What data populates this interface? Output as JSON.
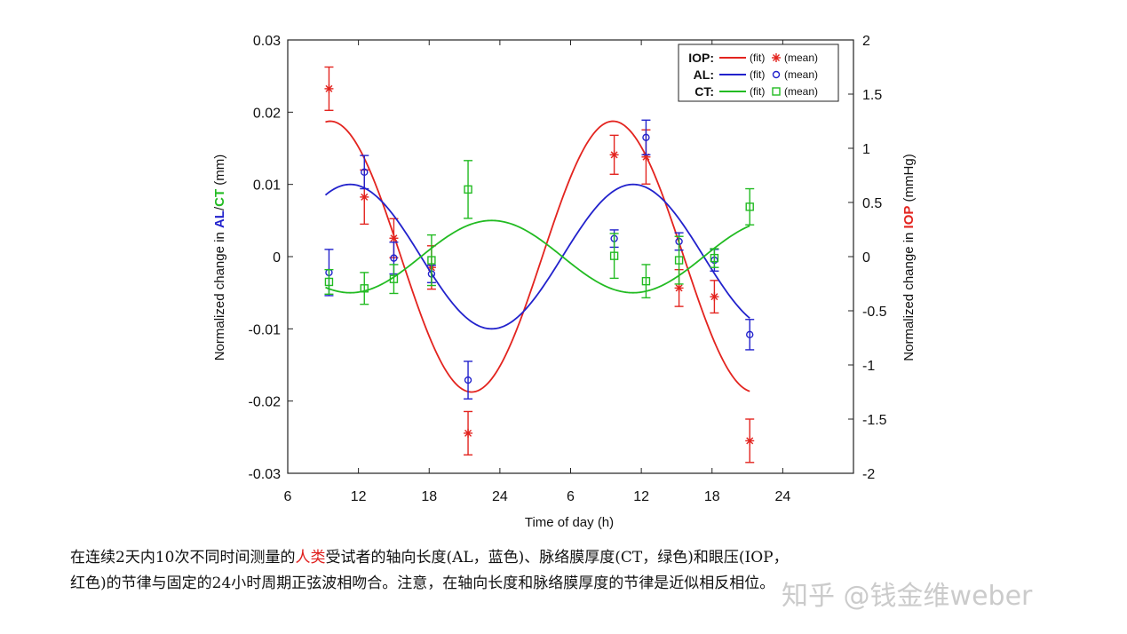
{
  "chart_data": {
    "type": "line",
    "x_ticks": [
      "6",
      "12",
      "18",
      "24",
      "6",
      "12",
      "18",
      "24"
    ],
    "xlabel": "Time of day (h)",
    "y_left": {
      "label_prefix": "Normalized change in ",
      "label_al": "AL",
      "label_sep": "/",
      "label_ct": "CT",
      "label_suffix": " (mm)",
      "ylim": [
        -0.03,
        0.03
      ],
      "ticks": [
        "-0.03",
        "-0.02",
        "-0.01",
        "0",
        "0.01",
        "0.02",
        "0.03"
      ]
    },
    "y_right": {
      "label_prefix": "Normalized change in ",
      "label_iop": "IOP",
      "label_suffix": " (mmHg)",
      "ylim": [
        -2,
        2
      ],
      "ticks": [
        "-2",
        "-1.5",
        "-1",
        "-0.5",
        "0",
        "0.5",
        "1",
        "1.5",
        "2"
      ]
    },
    "xlim": [
      6,
      54
    ],
    "series": [
      {
        "name": "IOP",
        "color": "#e3241f",
        "axis": "right",
        "marker": "asterisk",
        "fit": {
          "amplitude": 1.25,
          "peak_hour": 9.6,
          "phase_hours": 24,
          "x_start": 9.2,
          "x_end": 45.2
        },
        "mean": [
          {
            "x": 9.5,
            "y": 1.55,
            "err": 0.2
          },
          {
            "x": 12.5,
            "y": 0.55,
            "err": 0.25
          },
          {
            "x": 15,
            "y": 0.17,
            "err": 0.18
          },
          {
            "x": 18.2,
            "y": -0.1,
            "err": 0.2
          },
          {
            "x": 21.3,
            "y": -1.63,
            "err": 0.2
          },
          {
            "x": 33.7,
            "y": 0.94,
            "err": 0.18
          },
          {
            "x": 36.4,
            "y": 0.92,
            "err": 0.25
          },
          {
            "x": 39.2,
            "y": -0.29,
            "err": 0.17
          },
          {
            "x": 42.2,
            "y": -0.37,
            "err": 0.15
          },
          {
            "x": 45.2,
            "y": -1.7,
            "err": 0.2
          }
        ]
      },
      {
        "name": "AL",
        "color": "#2222cc",
        "axis": "left",
        "marker": "circle",
        "fit": {
          "amplitude": 0.01,
          "peak_hour": 11.3,
          "phase_hours": 24,
          "x_start": 9.2,
          "x_end": 45.2
        },
        "mean": [
          {
            "x": 9.5,
            "y": -0.0022,
            "err": 0.0032
          },
          {
            "x": 12.5,
            "y": 0.0117,
            "err": 0.0023
          },
          {
            "x": 15,
            "y": -0.0002,
            "err": 0.0022
          },
          {
            "x": 18.2,
            "y": -0.0024,
            "err": 0.0012
          },
          {
            "x": 21.3,
            "y": -0.0171,
            "err": 0.0026
          },
          {
            "x": 33.7,
            "y": 0.0025,
            "err": 0.0012
          },
          {
            "x": 36.4,
            "y": 0.0165,
            "err": 0.0024
          },
          {
            "x": 39.2,
            "y": 0.0021,
            "err": 0.0012
          },
          {
            "x": 42.2,
            "y": -0.0005,
            "err": 0.0015
          },
          {
            "x": 45.2,
            "y": -0.0108,
            "err": 0.0021
          }
        ]
      },
      {
        "name": "CT",
        "color": "#22bb22",
        "axis": "left",
        "marker": "square",
        "fit": {
          "amplitude": 0.005,
          "peak_hour": 23.3,
          "phase_hours": 24,
          "x_start": 9.2,
          "x_end": 45.2
        },
        "mean": [
          {
            "x": 9.5,
            "y": -0.0035,
            "err": 0.0017
          },
          {
            "x": 12.5,
            "y": -0.0044,
            "err": 0.0022
          },
          {
            "x": 15,
            "y": -0.0031,
            "err": 0.002
          },
          {
            "x": 18.2,
            "y": -0.0005,
            "err": 0.0035
          },
          {
            "x": 21.3,
            "y": 0.0093,
            "err": 0.004
          },
          {
            "x": 33.7,
            "y": 0.0001,
            "err": 0.0031
          },
          {
            "x": 36.4,
            "y": -0.0034,
            "err": 0.0023
          },
          {
            "x": 39.2,
            "y": -0.0005,
            "err": 0.0033
          },
          {
            "x": 42.2,
            "y": -0.0002,
            "err": 0.0013
          },
          {
            "x": 45.2,
            "y": 0.0069,
            "err": 0.0025
          }
        ]
      }
    ],
    "legend": {
      "placement": "top-right",
      "fit_label": "(fit)",
      "mean_label": "(mean)",
      "entries": [
        {
          "key": "IOP:",
          "color": "#e3241f",
          "marker": "asterisk"
        },
        {
          "key": "AL:",
          "color": "#2222cc",
          "marker": "circle"
        },
        {
          "key": "CT:",
          "color": "#22bb22",
          "marker": "square"
        }
      ]
    }
  },
  "caption": {
    "line1_a": "在连续2天内10次不同时间测量的",
    "line1_hl": "人类",
    "line1_b": "受试者的轴向长度(AL，蓝色)、脉络膜厚度(CT，绿色)和眼压(IOP，",
    "line2": "红色)的节律与固定的24小时周期正弦波相吻合。注意，在轴向长度和脉络膜厚度的节律是近似相反相位。"
  },
  "watermark": "知乎 @钱金维weber"
}
